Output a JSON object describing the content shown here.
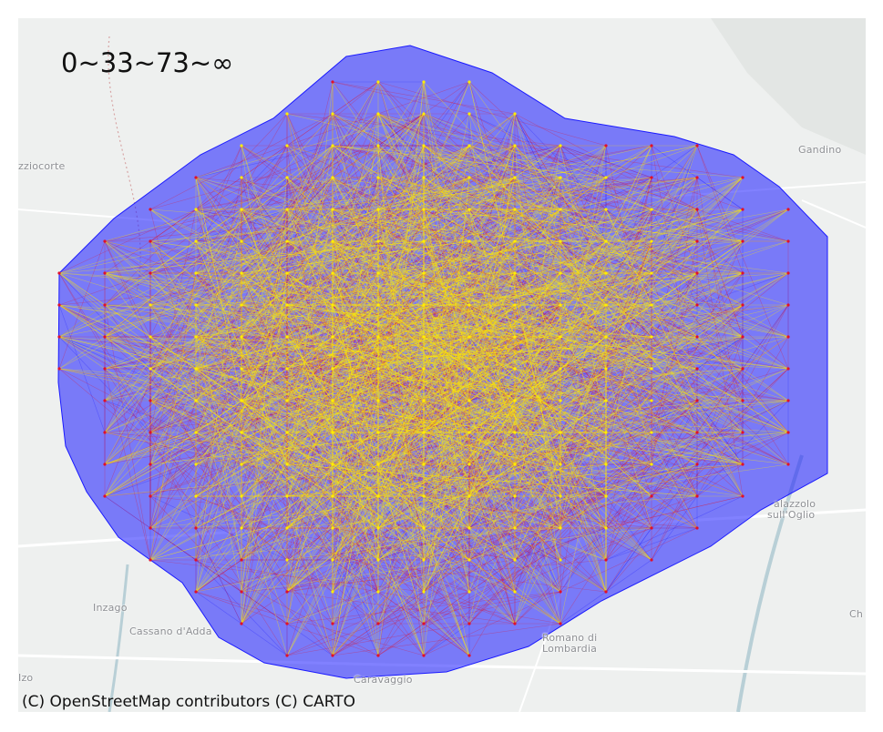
{
  "legend": {
    "label": "0~33~73~∞"
  },
  "attribution": "(C) OpenStreetMap contributors (C) CARTO",
  "places": {
    "gandino": "Gandino",
    "zziocorte": "zziocorte",
    "inzago": "Inzago",
    "cassano": "Cassano d'Adda",
    "romano_line1": "Romano di",
    "romano_line2": "Lombardia",
    "palazzolo_line1": "alazzolo",
    "palazzolo_line2": "sull'Oglio",
    "caravaggio": "Caravaggio",
    "izo": "Izo",
    "ch": "Ch"
  },
  "colors": {
    "low_range": "#1a1aff",
    "mid_range": "#e0102a",
    "high_range": "#ffee00",
    "basemap": "#eef0ef",
    "water": "#b8cfd6",
    "road": "#ffffff"
  },
  "network": {
    "description_ranges": [
      "0",
      "33",
      "73",
      "∞"
    ],
    "style": "dense flow lines between grid nodes, blue for short distances, red for medium, yellow for longest"
  }
}
